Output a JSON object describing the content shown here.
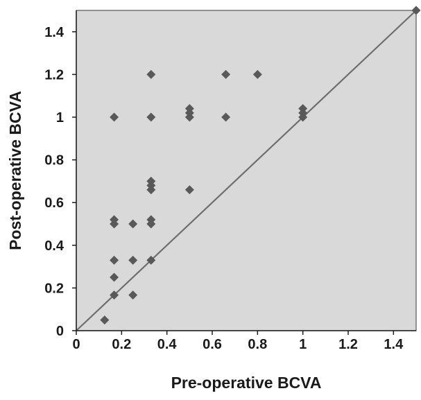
{
  "chart_data": {
    "type": "scatter",
    "title": "",
    "xlabel": "Pre-operative BCVA",
    "ylabel": "Post-operative BCVA",
    "xlim": [
      0,
      1.5
    ],
    "ylim": [
      0,
      1.5
    ],
    "xticks": [
      "0",
      "0.2",
      "0.4",
      "0.6",
      "0.8",
      "1",
      "1.2",
      "1.4"
    ],
    "yticks": [
      "0",
      "0.2",
      "0.4",
      "0.6",
      "0.8",
      "1",
      "1.2",
      "1.4"
    ],
    "grid": false,
    "reference_line": {
      "from": [
        0,
        0
      ],
      "to": [
        1.5,
        1.5
      ]
    },
    "colors": {
      "marker": "#595959",
      "plot_background": "#d9d9d9",
      "line": "#6e6e6e"
    },
    "series": [
      {
        "points": [
          [
            0.125,
            0.05
          ],
          [
            0.167,
            0.167
          ],
          [
            0.167,
            0.25
          ],
          [
            0.167,
            0.33
          ],
          [
            0.167,
            0.5
          ],
          [
            0.167,
            0.52
          ],
          [
            0.167,
            1.0
          ],
          [
            0.25,
            0.167
          ],
          [
            0.25,
            0.33
          ],
          [
            0.25,
            0.5
          ],
          [
            0.33,
            0.33
          ],
          [
            0.33,
            0.5
          ],
          [
            0.33,
            0.52
          ],
          [
            0.33,
            0.66
          ],
          [
            0.33,
            0.68
          ],
          [
            0.33,
            0.7
          ],
          [
            0.33,
            1.0
          ],
          [
            0.33,
            1.2
          ],
          [
            0.5,
            0.66
          ],
          [
            0.5,
            1.0
          ],
          [
            0.5,
            1.02
          ],
          [
            0.5,
            1.04
          ],
          [
            0.66,
            1.0
          ],
          [
            0.66,
            1.2
          ],
          [
            0.8,
            1.2
          ],
          [
            1.0,
            1.0
          ],
          [
            1.0,
            1.02
          ],
          [
            1.0,
            1.04
          ],
          [
            1.5,
            1.5
          ]
        ]
      }
    ]
  }
}
